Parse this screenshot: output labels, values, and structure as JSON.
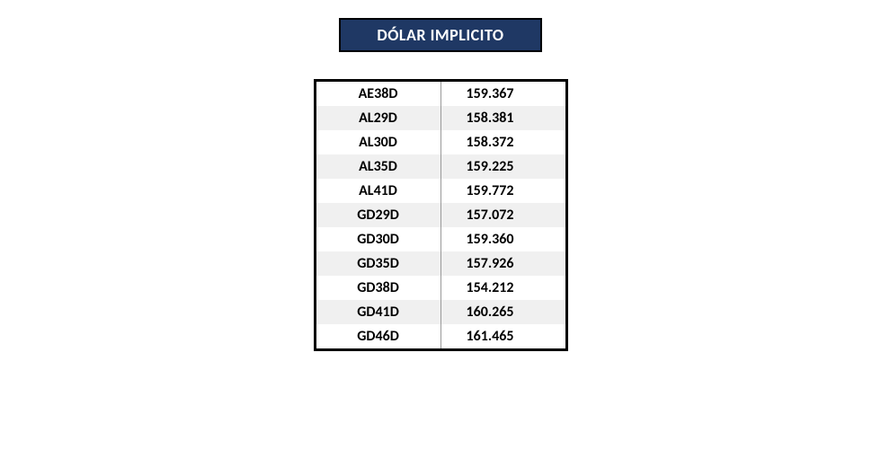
{
  "title": "DÓLAR IMPLICITO",
  "table": {
    "rows": [
      {
        "label": "AE38D",
        "value": "159.367"
      },
      {
        "label": "AL29D",
        "value": "158.381"
      },
      {
        "label": "AL30D",
        "value": "158.372"
      },
      {
        "label": "AL35D",
        "value": "159.225"
      },
      {
        "label": "AL41D",
        "value": "159.772"
      },
      {
        "label": "GD29D",
        "value": "157.072"
      },
      {
        "label": "GD30D",
        "value": "159.360"
      },
      {
        "label": "GD35D",
        "value": "157.926"
      },
      {
        "label": "GD38D",
        "value": "154.212"
      },
      {
        "label": "GD41D",
        "value": "160.265"
      },
      {
        "label": "GD46D",
        "value": "161.465"
      }
    ]
  },
  "style": {
    "title_bg": "#1f3864",
    "title_color": "#ffffff",
    "title_fontsize": 18,
    "border_color": "#000000",
    "row_even_bg": "#ffffff",
    "row_odd_bg": "#f0f0f0",
    "cell_fontsize": 16,
    "cell_font_weight": "bold"
  }
}
